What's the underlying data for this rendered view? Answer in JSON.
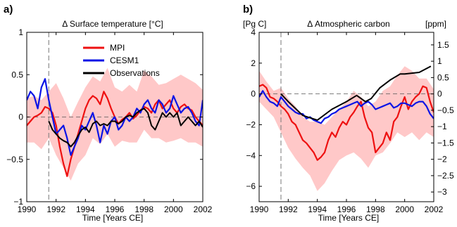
{
  "chart_data": [
    {
      "type": "line",
      "panel_label": "a)",
      "title": "Δ Surface temperature [°C]",
      "xlabel": "Time [Years CE]",
      "ylabel": "",
      "xlim": [
        1990,
        2002
      ],
      "ylim": [
        -1,
        1
      ],
      "x_ticks": [
        1990,
        1992,
        1994,
        1996,
        1998,
        2000,
        2002
      ],
      "x_tick_labels": [
        "1990",
        "1992",
        "1994",
        "1996",
        "1998",
        "2000",
        "2002"
      ],
      "y_ticks": [
        -1,
        -0.5,
        0,
        0.5,
        1
      ],
      "y_tick_labels": [
        "−1",
        "−0.5",
        "0",
        "0.5",
        "1"
      ],
      "zero_line": 0,
      "event_line_x": 1991.5,
      "legend": {
        "position": "top-right",
        "entries": [
          "MPI",
          "CESM1",
          "Observations"
        ]
      },
      "shaded_band": {
        "color": "#ffc8c8",
        "x": [
          1990,
          1990.5,
          1991,
          1991.5,
          1992,
          1992.5,
          1993,
          1993.5,
          1994,
          1994.5,
          1995,
          1995.5,
          1996,
          1996.5,
          1997,
          1997.5,
          1998,
          1998.5,
          1999,
          1999.5,
          2000,
          2000.5,
          2001,
          2001.5,
          2002
        ],
        "upper": [
          0.22,
          0.25,
          0.2,
          0.3,
          0.4,
          0.22,
          0.0,
          0.18,
          0.35,
          0.48,
          0.42,
          0.58,
          0.35,
          0.3,
          0.38,
          0.3,
          0.55,
          0.48,
          0.38,
          0.4,
          0.45,
          0.5,
          0.45,
          0.4,
          0.32
        ],
        "lower": [
          -0.3,
          -0.3,
          -0.38,
          -0.25,
          -0.45,
          -0.6,
          -0.75,
          -0.55,
          -0.45,
          -0.25,
          -0.32,
          -0.2,
          -0.35,
          -0.28,
          -0.3,
          -0.3,
          -0.15,
          -0.25,
          -0.25,
          -0.3,
          -0.28,
          -0.25,
          -0.3,
          -0.3,
          -0.35
        ]
      },
      "series": [
        {
          "name": "MPI",
          "color": "#ee1111",
          "x": [
            1990,
            1990.25,
            1990.5,
            1990.75,
            1991,
            1991.25,
            1991.5,
            1991.75,
            1992,
            1992.25,
            1992.5,
            1992.75,
            1993,
            1993.25,
            1993.5,
            1993.75,
            1994,
            1994.25,
            1994.5,
            1994.75,
            1995,
            1995.25,
            1995.5,
            1995.75,
            1996,
            1996.25,
            1996.5,
            1996.75,
            1997,
            1997.25,
            1997.5,
            1997.75,
            1998,
            1998.25,
            1998.5,
            1998.75,
            1999,
            1999.25,
            1999.5,
            1999.75,
            2000,
            2000.25,
            2000.5,
            2000.75,
            2001,
            2001.25,
            2001.5,
            2001.75,
            2002
          ],
          "y": [
            -0.1,
            -0.05,
            0.0,
            0.02,
            0.05,
            0.12,
            0.1,
            0.05,
            -0.1,
            -0.35,
            -0.55,
            -0.7,
            -0.5,
            -0.35,
            -0.2,
            -0.05,
            0.1,
            0.2,
            0.25,
            0.22,
            0.15,
            0.3,
            0.22,
            0.1,
            0.0,
            -0.08,
            -0.03,
            0.0,
            0.05,
            -0.02,
            0.02,
            0.08,
            0.12,
            0.1,
            0.05,
            0.15,
            0.2,
            0.1,
            0.15,
            0.2,
            0.1,
            0.05,
            0.12,
            0.15,
            0.1,
            0.08,
            0.0,
            -0.05,
            -0.1
          ]
        },
        {
          "name": "CESM1",
          "color": "#0a14e6",
          "x": [
            1990,
            1990.25,
            1990.5,
            1990.75,
            1991,
            1991.25,
            1991.5,
            1991.75,
            1992,
            1992.25,
            1992.5,
            1992.75,
            1993,
            1993.25,
            1993.5,
            1993.75,
            1994,
            1994.25,
            1994.5,
            1994.75,
            1995,
            1995.25,
            1995.5,
            1995.75,
            1996,
            1996.25,
            1996.5,
            1996.75,
            1997,
            1997.25,
            1997.5,
            1997.75,
            1998,
            1998.25,
            1998.5,
            1998.75,
            1999,
            1999.25,
            1999.5,
            1999.75,
            2000,
            2000.25,
            2000.5,
            2000.75,
            2001,
            2001.25,
            2001.5,
            2001.75,
            2002
          ],
          "y": [
            0.2,
            0.3,
            0.25,
            0.1,
            0.35,
            0.45,
            0.2,
            0.0,
            -0.2,
            -0.15,
            -0.1,
            -0.25,
            -0.45,
            -0.35,
            -0.25,
            -0.1,
            -0.15,
            -0.05,
            0.05,
            -0.1,
            -0.3,
            -0.1,
            -0.2,
            -0.05,
            0.0,
            -0.15,
            -0.1,
            0.0,
            -0.05,
            0.0,
            0.1,
            0.05,
            0.15,
            0.2,
            0.1,
            0.05,
            0.2,
            0.15,
            0.05,
            0.1,
            0.25,
            0.15,
            0.05,
            0.1,
            0.12,
            0.05,
            -0.05,
            -0.1,
            0.2
          ]
        },
        {
          "name": "Observations",
          "color": "#000000",
          "x": [
            1991.5,
            1991.75,
            1992,
            1992.25,
            1992.5,
            1992.75,
            1993,
            1993.25,
            1993.5,
            1993.75,
            1994,
            1994.25,
            1994.5,
            1994.75,
            1995,
            1995.25,
            1995.5,
            1995.75,
            1996,
            1996.25,
            1996.5,
            1996.75,
            1997,
            1997.25,
            1997.5,
            1997.75,
            1998,
            1998.25,
            1998.5,
            1998.75,
            1999,
            1999.25,
            1999.5,
            1999.75,
            2000,
            2000.25,
            2000.5,
            2000.75,
            2001,
            2001.25,
            2001.5,
            2001.75,
            2002
          ],
          "y": [
            -0.05,
            -0.15,
            -0.2,
            -0.25,
            -0.28,
            -0.3,
            -0.35,
            -0.3,
            -0.22,
            -0.15,
            -0.12,
            -0.18,
            -0.08,
            -0.05,
            -0.1,
            -0.08,
            -0.1,
            -0.05,
            -0.05,
            -0.08,
            -0.05,
            0.0,
            0.02,
            0.0,
            0.05,
            0.08,
            0.1,
            0.05,
            -0.1,
            -0.15,
            -0.05,
            0.05,
            0.0,
            0.05,
            0.0,
            0.05,
            -0.1,
            -0.05,
            0.0,
            -0.05,
            -0.1,
            -0.05,
            -0.12
          ]
        }
      ]
    },
    {
      "type": "line",
      "panel_label": "b)",
      "title": "Δ Atmospheric carbon",
      "xlabel": "Time [Years CE]",
      "ylabel": "[Pg C]",
      "y2label": "[ppm]",
      "xlim": [
        1990,
        2002
      ],
      "ylim": [
        -7,
        4
      ],
      "x_ticks": [
        1990,
        1992,
        1994,
        1996,
        1998,
        2000,
        2002
      ],
      "x_tick_labels": [
        "1990",
        "1992",
        "1994",
        "1996",
        "1998",
        "2000",
        "2002"
      ],
      "y_ticks": [
        -6,
        -4,
        -2,
        0,
        2,
        4
      ],
      "y_tick_labels": [
        "−6",
        "−4",
        "−2",
        "0",
        "2",
        "4"
      ],
      "y2_ticks": [
        1.5,
        1,
        0.5,
        0,
        -0.5,
        -1,
        -1.5,
        -2,
        -2.5,
        -3
      ],
      "y2_tick_labels": [
        "1.5",
        "1",
        "0.5",
        "0",
        "−0.5",
        "−1",
        "−1.5",
        "−2",
        "−2.5",
        "−3"
      ],
      "y2_per_y1": 0.471,
      "zero_line": 0,
      "event_line_x": 1991.5,
      "shaded_band": {
        "color": "#ffc8c8",
        "x": [
          1990,
          1990.5,
          1991,
          1991.5,
          1992,
          1992.5,
          1993,
          1993.5,
          1994,
          1994.5,
          1995,
          1995.5,
          1996,
          1996.5,
          1997,
          1997.5,
          1998,
          1998.5,
          1999,
          1999.5,
          2000,
          2000.5,
          2001,
          2001.5,
          2002
        ],
        "upper": [
          1.5,
          0.8,
          0.2,
          0.4,
          -0.3,
          -0.8,
          -1.5,
          -1.8,
          -1.8,
          -2.0,
          -1.5,
          -1.0,
          -0.5,
          0.2,
          -0.2,
          -0.8,
          -0.5,
          0.2,
          0.5,
          1.2,
          1.8,
          1.5,
          1.0,
          1.0,
          0.3
        ],
        "lower": [
          -0.5,
          -1.0,
          -1.5,
          -2.5,
          -3.5,
          -4.2,
          -4.8,
          -5.3,
          -6.3,
          -5.8,
          -5.0,
          -4.3,
          -4.0,
          -3.8,
          -4.2,
          -4.8,
          -4.0,
          -3.8,
          -3.2,
          -2.5,
          -2.8,
          -2.5,
          -3.0,
          -2.5,
          -2.8
        ]
      },
      "series": [
        {
          "name": "MPI",
          "color": "#ee1111",
          "x": [
            1990,
            1990.25,
            1990.5,
            1990.75,
            1991,
            1991.25,
            1991.5,
            1991.75,
            1992,
            1992.25,
            1992.5,
            1992.75,
            1993,
            1993.25,
            1993.5,
            1993.75,
            1994,
            1994.25,
            1994.5,
            1994.75,
            1995,
            1995.25,
            1995.5,
            1995.75,
            1996,
            1996.25,
            1996.5,
            1996.75,
            1997,
            1997.25,
            1997.5,
            1997.75,
            1998,
            1998.25,
            1998.5,
            1998.75,
            1999,
            1999.25,
            1999.5,
            1999.75,
            2000,
            2000.25,
            2000.5,
            2000.75,
            2001,
            2001.25,
            2001.5,
            2001.75,
            2002
          ],
          "y": [
            0.5,
            0.6,
            0.4,
            -0.2,
            -0.3,
            -0.5,
            -0.8,
            -1.0,
            -1.3,
            -1.8,
            -2.0,
            -2.5,
            -3.0,
            -3.2,
            -3.5,
            -3.8,
            -4.3,
            -4.1,
            -3.8,
            -3.0,
            -2.5,
            -2.8,
            -2.2,
            -1.8,
            -2.0,
            -1.5,
            -1.2,
            -0.8,
            -0.5,
            -1.5,
            -2.2,
            -2.5,
            -3.8,
            -3.5,
            -3.2,
            -2.5,
            -3.0,
            -1.8,
            -1.5,
            -0.8,
            -0.2,
            -1.0,
            -0.5,
            -0.2,
            0.0,
            0.5,
            0.4,
            -0.5,
            -1.2
          ]
        },
        {
          "name": "CESM1",
          "color": "#0a14e6",
          "x": [
            1990,
            1990.25,
            1990.5,
            1990.75,
            1991,
            1991.25,
            1991.5,
            1991.75,
            1992,
            1992.25,
            1992.5,
            1992.75,
            1993,
            1993.25,
            1993.5,
            1993.75,
            1994,
            1994.25,
            1994.5,
            1994.75,
            1995,
            1995.25,
            1995.5,
            1995.75,
            1996,
            1996.25,
            1996.5,
            1996.75,
            1997,
            1997.25,
            1997.5,
            1997.75,
            1998,
            1998.25,
            1998.5,
            1998.75,
            1999,
            1999.25,
            1999.5,
            1999.75,
            2000,
            2000.25,
            2000.5,
            2000.75,
            2001,
            2001.25,
            2001.5,
            2001.75,
            2002
          ],
          "y": [
            -0.2,
            0.2,
            -0.2,
            -0.5,
            -0.6,
            -0.8,
            -0.2,
            -0.5,
            -0.8,
            -1.0,
            -1.2,
            -1.3,
            -1.3,
            -1.6,
            -1.5,
            -1.7,
            -1.8,
            -1.9,
            -1.6,
            -1.5,
            -1.3,
            -1.2,
            -1.0,
            -0.9,
            -0.8,
            -0.7,
            -0.6,
            -0.5,
            -0.8,
            -0.6,
            -0.5,
            -0.7,
            -1.0,
            -0.9,
            -0.8,
            -0.7,
            -0.6,
            -0.9,
            -0.8,
            -0.6,
            -0.6,
            -0.7,
            -0.8,
            -0.6,
            -0.5,
            -0.5,
            -0.8,
            -1.3,
            -1.6
          ]
        },
        {
          "name": "Observations",
          "color": "#000000",
          "x": [
            1991.5,
            1992,
            1993,
            1994,
            1995,
            1996,
            1996.7,
            1997.3,
            1997.7,
            1998.3,
            1999,
            1999.7,
            2000,
            2001,
            2001.8
          ],
          "y": [
            0.0,
            -0.5,
            -1.4,
            -1.7,
            -1.0,
            -0.5,
            -0.1,
            -0.5,
            -0.3,
            0.4,
            0.9,
            1.3,
            1.3,
            1.4,
            1.8
          ]
        }
      ]
    }
  ]
}
